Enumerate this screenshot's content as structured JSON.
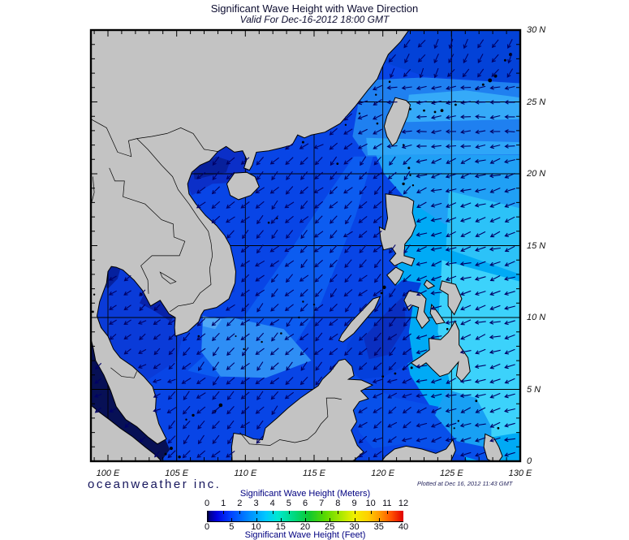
{
  "header": {
    "title": "Significant Wave Height with Wave Direction",
    "subtitle": "Valid For Dec-16-2012 18:00 GMT"
  },
  "axes": {
    "lon_labels": [
      "100 E",
      "105 E",
      "110 E",
      "115 E",
      "120 E",
      "125 E",
      "130 E"
    ],
    "lat_labels": [
      "30 N",
      "25 N",
      "20 N",
      "15 N",
      "10 N",
      "5 N",
      "0"
    ]
  },
  "legend": {
    "meters_label": "Significant Wave Height (Meters)",
    "feet_label": "Significant Wave Height (Feet)",
    "meters_ticks": [
      "0",
      "1",
      "2",
      "3",
      "4",
      "5",
      "6",
      "7",
      "8",
      "9",
      "10",
      "11",
      "12"
    ],
    "feet_ticks": [
      "0",
      "5",
      "10",
      "15",
      "20",
      "25",
      "30",
      "35",
      "40"
    ],
    "gradient_stops": [
      [
        "0",
        "#000000"
      ],
      [
        "1.5",
        "#000090"
      ],
      [
        "5",
        "#0000e0"
      ],
      [
        "12",
        "#0040ff"
      ],
      [
        "22",
        "#0090ff"
      ],
      [
        "30",
        "#00c8ff"
      ],
      [
        "36",
        "#00e8d0"
      ],
      [
        "45",
        "#00d878"
      ],
      [
        "52",
        "#10c830"
      ],
      [
        "60",
        "#58d800"
      ],
      [
        "68",
        "#a8e800"
      ],
      [
        "75",
        "#f0f000"
      ],
      [
        "82",
        "#ffd000"
      ],
      [
        "88",
        "#ff9800"
      ],
      [
        "94",
        "#ff5000"
      ],
      [
        "100",
        "#e00000"
      ]
    ]
  },
  "footer": {
    "brand": "oceanweather inc.",
    "plotted_at": "Plotted at Dec 16, 2012 11:43 GMT"
  },
  "map": {
    "colors": {
      "land": "#c3c3c3",
      "coast": "#000000",
      "grid": "#000000",
      "frame": "#000000",
      "arrow": "#000066",
      "sea_base": "#0845e6",
      "north_dark": "#0342d8",
      "north_band": "#1f80f0",
      "north_strip": "#2ea6f8",
      "taiwan_east": "#35aaf8",
      "luzon_strait": "#20a0f5",
      "phil_cyan": "#00aaf5",
      "phil_pale": "#3cd2fb",
      "phil_wedge": "#2cc2f8",
      "scs_band": "#0c5cf0",
      "scs_light": "#2e8ef5",
      "delta_bright": "#4fa8f7",
      "vn_coast": "#0a36cc",
      "tonkin": "#0b2fc8",
      "tonkin_inner": "#07209c",
      "gulf_thai": "#0a3bd8",
      "gulf_thai_dark": "#05209e",
      "camb_coast": "#0722aa",
      "malacca": "#071055",
      "sulu": "#0440dc",
      "sulu_dark": "#0a2fc0",
      "celebes": "#0850ea",
      "celebes_cyan": "#18a0f4"
    }
  }
}
